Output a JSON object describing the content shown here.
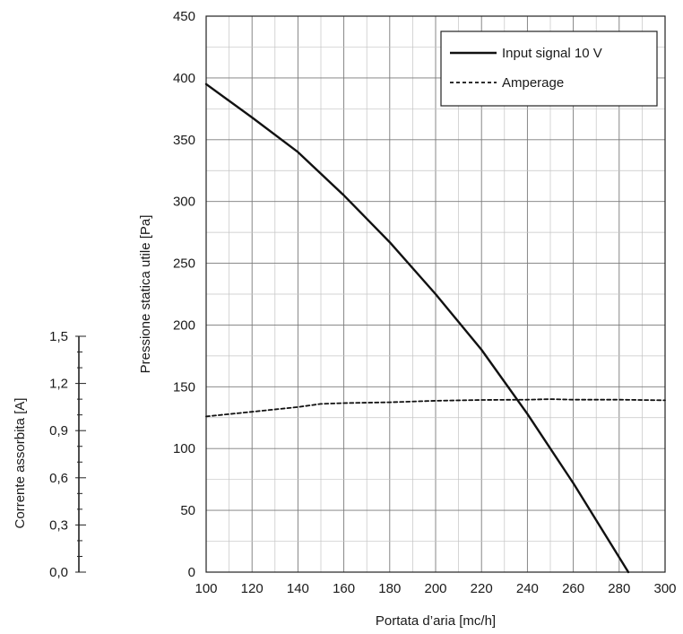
{
  "chart_data": {
    "type": "line",
    "x_label": "Portata d’aria [mc/h]",
    "y_label": "Pressione statica utile [Pa]",
    "secondary_y_label": "Corrente assorbita [A]",
    "xlim": [
      100,
      300
    ],
    "ylim": [
      0,
      450
    ],
    "secondary_ylim": [
      0,
      1.5
    ],
    "x_ticks": [
      "100",
      "120",
      "140",
      "160",
      "180",
      "200",
      "220",
      "240",
      "260",
      "280",
      "300"
    ],
    "y_ticks": [
      "0",
      "50",
      "100",
      "150",
      "200",
      "250",
      "300",
      "350",
      "400",
      "450"
    ],
    "secondary_y_ticks": [
      "0,0",
      "0,3",
      "0,6",
      "0,9",
      "1,2",
      "1,5"
    ],
    "grid": true,
    "legend_position": "top-right",
    "series": [
      {
        "name": "Input signal 10 V",
        "style": "solid",
        "color": "#111111",
        "axis": "primary",
        "x": [
          100,
          120,
          140,
          160,
          180,
          200,
          220,
          240,
          260,
          280,
          284
        ],
        "y": [
          395,
          368,
          340,
          305,
          267,
          225,
          180,
          128,
          72,
          12,
          0
        ]
      },
      {
        "name": "Amperage",
        "style": "dashed",
        "color": "#111111",
        "axis": "secondary",
        "x": [
          100,
          120,
          140,
          150,
          160,
          180,
          200,
          220,
          240,
          250,
          260,
          280,
          300
        ],
        "y": [
          0.99,
          1.02,
          1.05,
          1.07,
          1.075,
          1.08,
          1.09,
          1.095,
          1.097,
          1.1,
          1.097,
          1.097,
          1.093
        ]
      }
    ]
  }
}
